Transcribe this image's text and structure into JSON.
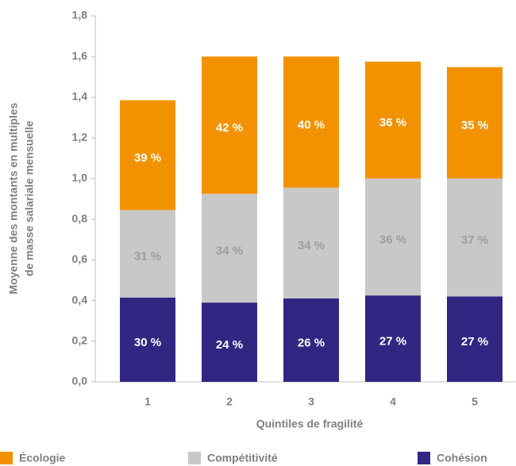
{
  "chart_data": {
    "type": "stacked_bar",
    "ylabel": [
      "Moyenne des montants en multiples",
      "de masse salariale mensuelle"
    ],
    "xlabel": "Quintiles de fragilité",
    "categories": [
      "1",
      "2",
      "3",
      "4",
      "5"
    ],
    "series": [
      {
        "name": "Écologie",
        "color": "#f39200",
        "values": [
          0.54,
          0.675,
          0.645,
          0.575,
          0.548
        ],
        "value_labels": [
          "39 %",
          "42 %",
          "40 %",
          "36 %",
          "35 %"
        ]
      },
      {
        "name": "Compétitivité",
        "color": "#c8c8c8",
        "values": [
          0.43,
          0.535,
          0.545,
          0.575,
          0.58
        ],
        "value_labels": [
          "31 %",
          "34 %",
          "34 %",
          "36 %",
          "37 %"
        ]
      },
      {
        "name": "Cohésion",
        "color": "#312783",
        "values": [
          0.415,
          0.39,
          0.41,
          0.425,
          0.42
        ],
        "value_labels": [
          "30 %",
          "24 %",
          "26 %",
          "27 %",
          "27 %"
        ]
      }
    ],
    "ylim": [
      0,
      1.8
    ],
    "yticks": [
      {
        "value": 0,
        "label": "0,0"
      },
      {
        "value": 0.2,
        "label": "0,2"
      },
      {
        "value": 0.4,
        "label": "0,4"
      },
      {
        "value": 0.6,
        "label": "0,6"
      },
      {
        "value": 0.8,
        "label": "0,8"
      },
      {
        "value": 1.0,
        "label": "1,0"
      },
      {
        "value": 1.2,
        "label": "1,2"
      },
      {
        "value": 1.4,
        "label": "1,4"
      },
      {
        "value": 1.6,
        "label": "1,6"
      },
      {
        "value": 1.8,
        "label": "1,8"
      }
    ],
    "grid": false,
    "legend": "bottom"
  }
}
